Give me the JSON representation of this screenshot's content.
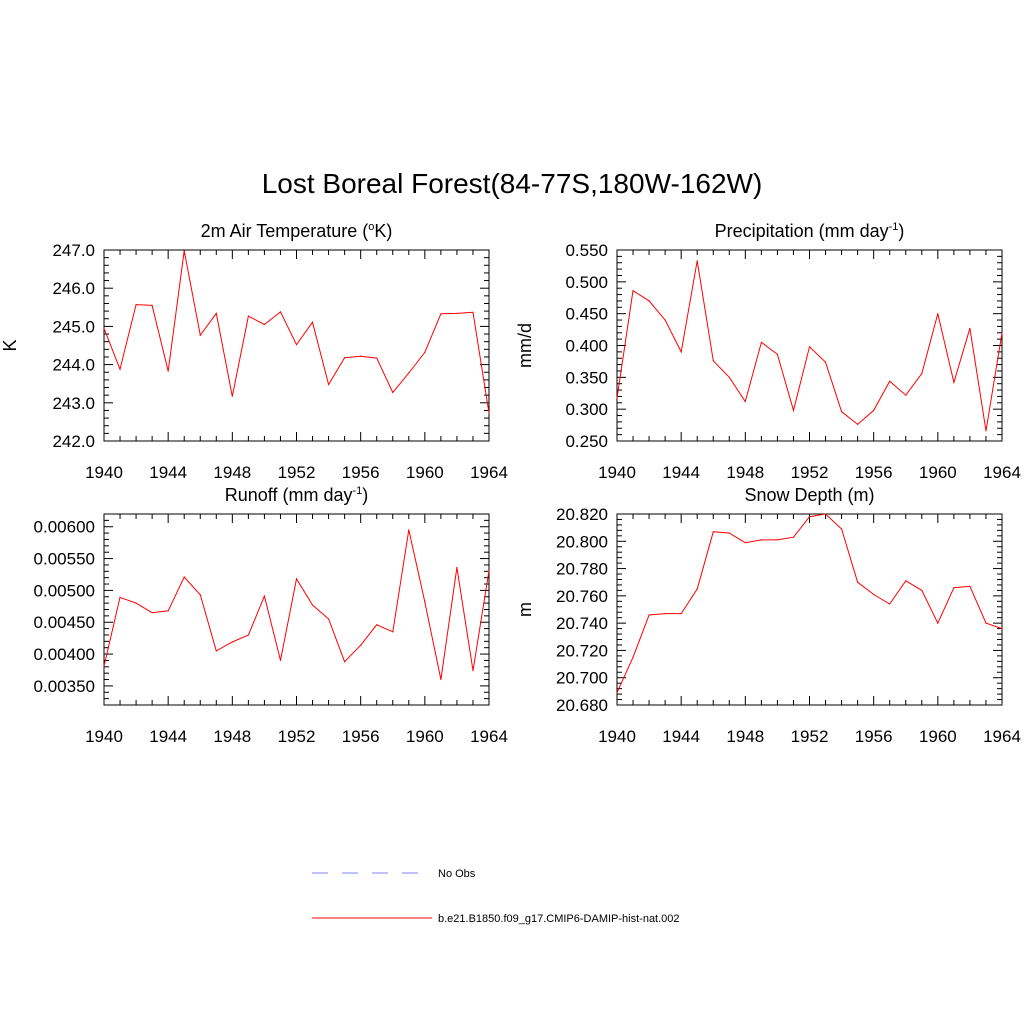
{
  "figure": {
    "title": "Lost Boreal Forest(84-77S,180W-162W)"
  },
  "chart_data": [
    {
      "type": "line",
      "title": "2m Air Temperature (°K)",
      "title_parts": {
        "pre": "2m Air Temperature (",
        "sup": "o",
        "post": "K)"
      },
      "ylabel": "K",
      "xlim": [
        1940,
        1964
      ],
      "ylim": [
        242.0,
        247.0
      ],
      "xticks": [
        1940,
        1944,
        1948,
        1952,
        1956,
        1960,
        1964
      ],
      "yticks": [
        "242.0",
        "243.0",
        "244.0",
        "245.0",
        "246.0",
        "247.0"
      ],
      "x": [
        1940,
        1941,
        1942,
        1943,
        1944,
        1945,
        1946,
        1947,
        1948,
        1949,
        1950,
        1951,
        1952,
        1953,
        1954,
        1955,
        1956,
        1957,
        1958,
        1959,
        1960,
        1961,
        1962,
        1963,
        1964
      ],
      "series": [
        {
          "color": "#ff0000",
          "values": [
            244.95,
            243.88,
            245.57,
            245.55,
            243.83,
            246.98,
            244.77,
            245.34,
            243.17,
            245.27,
            245.05,
            245.38,
            244.52,
            245.11,
            243.48,
            244.18,
            244.22,
            244.17,
            243.27,
            243.78,
            244.32,
            245.33,
            245.34,
            245.37,
            242.73
          ]
        }
      ]
    },
    {
      "type": "line",
      "title": "Precipitation (mm day-1)",
      "title_parts": {
        "pre": "Precipitation (mm day",
        "sup": "-1",
        "post": ")"
      },
      "ylabel": "mm/d",
      "xlim": [
        1940,
        1964
      ],
      "ylim": [
        0.25,
        0.55
      ],
      "xticks": [
        1940,
        1944,
        1948,
        1952,
        1956,
        1960,
        1964
      ],
      "yticks": [
        "0.250",
        "0.300",
        "0.350",
        "0.400",
        "0.450",
        "0.500",
        "0.550"
      ],
      "x": [
        1940,
        1941,
        1942,
        1943,
        1944,
        1945,
        1946,
        1947,
        1948,
        1949,
        1950,
        1951,
        1952,
        1953,
        1954,
        1955,
        1956,
        1957,
        1958,
        1959,
        1960,
        1961,
        1962,
        1963,
        1964
      ],
      "series": [
        {
          "color": "#ff0000",
          "values": [
            0.317,
            0.486,
            0.47,
            0.44,
            0.39,
            0.533,
            0.376,
            0.35,
            0.312,
            0.405,
            0.386,
            0.298,
            0.398,
            0.374,
            0.296,
            0.276,
            0.298,
            0.344,
            0.322,
            0.356,
            0.45,
            0.342,
            0.427,
            0.266,
            0.42
          ]
        }
      ]
    },
    {
      "type": "line",
      "title": "Runoff (mm day-1)",
      "title_parts": {
        "pre": "Runoff (mm day",
        "sup": "-1",
        "post": ")"
      },
      "ylabel": "",
      "xlim": [
        1940,
        1964
      ],
      "ylim": [
        0.0032,
        0.0062
      ],
      "xticks": [
        1940,
        1944,
        1948,
        1952,
        1956,
        1960,
        1964
      ],
      "yticks": [
        "0.00350",
        "0.00400",
        "0.00450",
        "0.00500",
        "0.00550",
        "0.00600"
      ],
      "x": [
        1940,
        1941,
        1942,
        1943,
        1944,
        1945,
        1946,
        1947,
        1948,
        1949,
        1950,
        1951,
        1952,
        1953,
        1954,
        1955,
        1956,
        1957,
        1958,
        1959,
        1960,
        1961,
        1962,
        1963,
        1964
      ],
      "series": [
        {
          "color": "#ff0000",
          "values": [
            0.00381,
            0.00489,
            0.0048,
            0.00465,
            0.00468,
            0.00521,
            0.00493,
            0.00405,
            0.00419,
            0.0043,
            0.00491,
            0.0039,
            0.00518,
            0.00477,
            0.00455,
            0.00388,
            0.00414,
            0.00446,
            0.00435,
            0.00595,
            0.00482,
            0.0036,
            0.00536,
            0.00374,
            0.00531
          ]
        }
      ]
    },
    {
      "type": "line",
      "title": "Snow Depth (m)",
      "ylabel": "m",
      "xlim": [
        1940,
        1964
      ],
      "ylim": [
        20.68,
        20.82
      ],
      "xticks": [
        1940,
        1944,
        1948,
        1952,
        1956,
        1960,
        1964
      ],
      "yticks": [
        "20.680",
        "20.700",
        "20.720",
        "20.740",
        "20.760",
        "20.780",
        "20.800",
        "20.820"
      ],
      "x": [
        1940,
        1941,
        1942,
        1943,
        1944,
        1945,
        1946,
        1947,
        1948,
        1949,
        1950,
        1951,
        1952,
        1953,
        1954,
        1955,
        1956,
        1957,
        1958,
        1959,
        1960,
        1961,
        1962,
        1963,
        1964
      ],
      "series": [
        {
          "color": "#ff0000",
          "values": [
            20.689,
            20.715,
            20.746,
            20.747,
            20.747,
            20.765,
            20.807,
            20.806,
            20.799,
            20.801,
            20.801,
            20.803,
            20.818,
            20.82,
            20.809,
            20.77,
            20.761,
            20.754,
            20.771,
            20.764,
            20.74,
            20.766,
            20.767,
            20.74,
            20.736
          ]
        }
      ]
    }
  ],
  "legend": [
    {
      "label": "No Obs",
      "color": "#9a9aff",
      "style": "dashed"
    },
    {
      "label": "b.e21.B1850.f09_g17.CMIP6-DAMIP-hist-nat.002",
      "color": "#ff0000",
      "style": "solid"
    }
  ]
}
